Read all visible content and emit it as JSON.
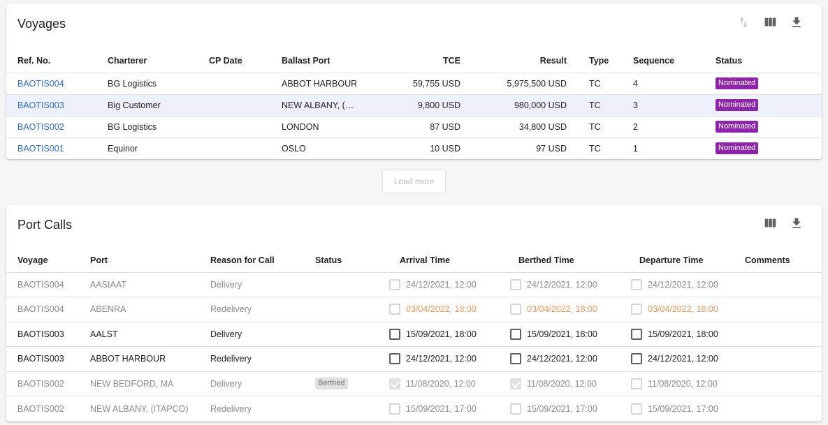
{
  "voyages": {
    "title": "Voyages",
    "columns": [
      "Ref. No.",
      "Charterer",
      "CP Date",
      "Ballast Port",
      "TCE",
      "Result",
      "Type",
      "Sequence",
      "Status"
    ],
    "rows": [
      {
        "ref": "BAOTIS004",
        "charterer": "BG Logistics",
        "cp_date": "",
        "ballast_port": "ABBOT HARBOUR",
        "tce": "59,755 USD",
        "result": "5,975,500 USD",
        "type": "TC",
        "sequence": "4",
        "status": "Nominated"
      },
      {
        "ref": "BAOTIS003",
        "charterer": "Big Customer",
        "cp_date": "",
        "ballast_port": "NEW ALBANY, (…",
        "tce": "9,800 USD",
        "result": "980,000 USD",
        "type": "TC",
        "sequence": "3",
        "status": "Nominated"
      },
      {
        "ref": "BAOTIS002",
        "charterer": "BG Logistics",
        "cp_date": "",
        "ballast_port": "LONDON",
        "tce": "87 USD",
        "result": "34,800 USD",
        "type": "TC",
        "sequence": "2",
        "status": "Nominated"
      },
      {
        "ref": "BAOTIS001",
        "charterer": "Equinor",
        "cp_date": "",
        "ballast_port": "OSLO",
        "tce": "10 USD",
        "result": "97 USD",
        "type": "TC",
        "sequence": "1",
        "status": "Nominated"
      }
    ],
    "load_more_label": "Load more"
  },
  "port_calls": {
    "title": "Port Calls",
    "columns": [
      "Voyage",
      "Port",
      "Reason for Call",
      "Status",
      "Arrival Time",
      "Berthed Time",
      "Departure Time",
      "Comments"
    ],
    "rows": [
      {
        "voyage": "BAOTIS004",
        "port": "AASIAAT",
        "reason": "Delivery",
        "status": "",
        "arrival": "24/12/2021, 12:00",
        "berthed": "24/12/2021, 12:00",
        "departure": "24/12/2021, 12:00",
        "comments": ""
      },
      {
        "voyage": "BAOTIS004",
        "port": "ABENRA",
        "reason": "Redelivery",
        "status": "",
        "arrival": "03/04/2022, 18:00",
        "berthed": "03/04/2022, 18:00",
        "departure": "03/04/2022, 18:00",
        "comments": ""
      },
      {
        "voyage": "BAOTIS003",
        "port": "AALST",
        "reason": "Delivery",
        "status": "",
        "arrival": "15/09/2021, 18:00",
        "berthed": "15/09/2021, 18:00",
        "departure": "15/09/2021, 18:00",
        "comments": ""
      },
      {
        "voyage": "BAOTIS003",
        "port": "ABBOT HARBOUR",
        "reason": "Redelivery",
        "status": "",
        "arrival": "24/12/2021, 12:00",
        "berthed": "24/12/2021, 12:00",
        "departure": "24/12/2021, 12:00",
        "comments": ""
      },
      {
        "voyage": "BAOTIS002",
        "port": "NEW BEDFORD, MA",
        "reason": "Delivery",
        "status": "Berthed",
        "arrival": "11/08/2020, 12:00",
        "berthed": "11/08/2020, 12:00",
        "departure": "11/08/2020, 12:00",
        "comments": ""
      },
      {
        "voyage": "BAOTIS002",
        "port": "NEW ALBANY, (ITAPCO)",
        "reason": "Redelivery",
        "status": "",
        "arrival": "15/09/2021, 17:00",
        "berthed": "15/09/2021, 17:00",
        "departure": "15/09/2021, 17:00",
        "comments": ""
      }
    ]
  },
  "colors": {
    "link": "#2f6fc2",
    "nominated_badge": "#8e24aa",
    "selected_row": "#eef1fb",
    "overdue_text": "#e8975a"
  },
  "icons": {
    "sort": "sort-icon",
    "columns": "view-column-icon",
    "download": "download-icon"
  }
}
